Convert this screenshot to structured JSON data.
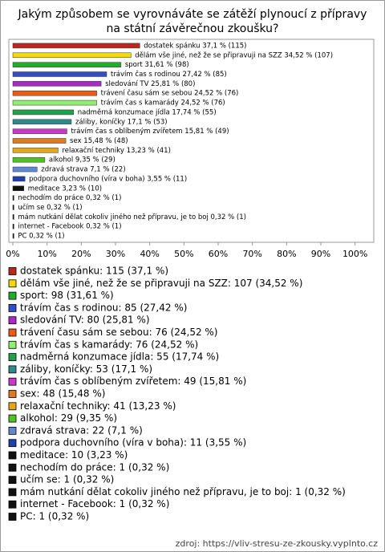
{
  "chart_data": {
    "type": "barh",
    "title": "Jakým způsobem se vyrovnáváte se zátěží plynoucí z přípravy na státní závěrečnou zkoušku?",
    "categories": [
      "dostatek spánku",
      "dělám vše jiné, než že se připravuji na SZZ",
      "sport",
      "trávím čas s rodinou",
      "sledování TV",
      "trávení času sám se sebou",
      "trávím čas s kamarády",
      "nadměrná konzumace jídla",
      "záliby, koníčky",
      "trávím čas s oblíbeným zvířetem",
      "sex",
      "relaxační techniky",
      "alkohol",
      "zdravá strava",
      "podpora duchovního (víra v boha)",
      "meditace",
      "nechodím do práce",
      "učím se",
      "mám nutkání dělat cokoliv jiného než přípravu, je to boj",
      "internet - Facebook",
      "PC"
    ],
    "values": [
      37.1,
      34.52,
      31.61,
      27.42,
      25.81,
      24.52,
      24.52,
      17.74,
      17.1,
      15.81,
      15.48,
      13.23,
      9.35,
      7.1,
      3.55,
      3.23,
      0.32,
      0.32,
      0.32,
      0.32,
      0.32
    ],
    "value_labels": [
      "dostatek spánku 37,1 % (115)",
      "dělám vše jiné, než že se připravuji na SZZ 34,52 % (107)",
      "sport 31,61 % (98)",
      "trávím čas s rodinou 27,42 % (85)",
      "sledování TV 25,81 % (80)",
      "trávení času sám se sebou 24,52 % (76)",
      "trávím čas s kamarády 24,52 % (76)",
      "nadměrná konzumace jídla 17,74 % (55)",
      "záliby, koníčky 17,1 % (53)",
      "trávím čas s oblíbeným zvířetem 15,81 % (49)",
      "sex 15,48 % (48)",
      "relaxační techniky 13,23 % (41)",
      "alkohol 9,35 % (29)",
      "zdravá strava 7,1 % (22)",
      "podpora duchovního (víra v boha) 3,55 % (11)",
      "meditace 3,23 % (10)",
      "nechodím do práce 0,32 % (1)",
      "učím se 0,32 % (1)",
      "mám nutkání dělat cokoliv jiného než přípravu, je to boj 0,32 % (1)",
      "internet - Facebook 0,32 % (1)",
      "PC 0,32 % (1)"
    ],
    "legend_labels": [
      "dostatek spánku: 115 (37,1 %)",
      "dělám vše jiné, než že se připravuji na SZZ: 107 (34,52 %)",
      "sport: 98 (31,61 %)",
      "trávím čas s rodinou: 85 (27,42 %)",
      "sledování TV: 80 (25,81 %)",
      "trávení času sám se sebou: 76 (24,52 %)",
      "trávím čas s kamarády: 76 (24,52 %)",
      "nadměrná konzumace jídla: 55 (17,74 %)",
      "záliby, koníčky: 53 (17,1 %)",
      "trávím čas s oblíbeným zvířetem: 49 (15,81 %)",
      "sex: 48 (15,48 %)",
      "relaxační techniky: 41 (13,23 %)",
      "alkohol: 29 (9,35 %)",
      "zdravá strava: 22 (7,1 %)",
      "podpora duchovního (víra v boha): 11 (3,55 %)",
      "meditace: 10 (3,23 %)",
      "nechodím do práce: 1 (0,32 %)",
      "učím se: 1 (0,32 %)",
      "mám nutkání dělat cokoliv jiného než přípravu, je to boj: 1 (0,32 %)",
      "internet - Facebook: 1 (0,32 %)",
      "PC: 1 (0,32 %)"
    ],
    "colors": [
      "#b8281e",
      "#f5d90a",
      "#1fae2a",
      "#3050c8",
      "#a828c8",
      "#ee5a14",
      "#90ee70",
      "#20a048",
      "#2e8a8a",
      "#c838c8",
      "#e07a20",
      "#e0a820",
      "#50c028",
      "#6088d0",
      "#2040a8",
      "#111111",
      "#111111",
      "#111111",
      "#111111",
      "#111111",
      "#111111"
    ],
    "xlim": [
      0,
      105
    ],
    "xticks": [
      {
        "value": 0,
        "label": "0%"
      },
      {
        "value": 10,
        "label": "10%"
      },
      {
        "value": 20,
        "label": "20%"
      },
      {
        "value": 30,
        "label": "30%"
      },
      {
        "value": 40,
        "label": "40%"
      },
      {
        "value": 50,
        "label": "50%"
      },
      {
        "value": 60,
        "label": "60%"
      },
      {
        "value": 70,
        "label": "70%"
      },
      {
        "value": 80,
        "label": "80%"
      },
      {
        "value": 90,
        "label": "90%"
      },
      {
        "value": 100,
        "label": "100%"
      }
    ],
    "source": "zdroj: https://vliv-stresu-ze-zkousky.vyplnto.cz"
  }
}
